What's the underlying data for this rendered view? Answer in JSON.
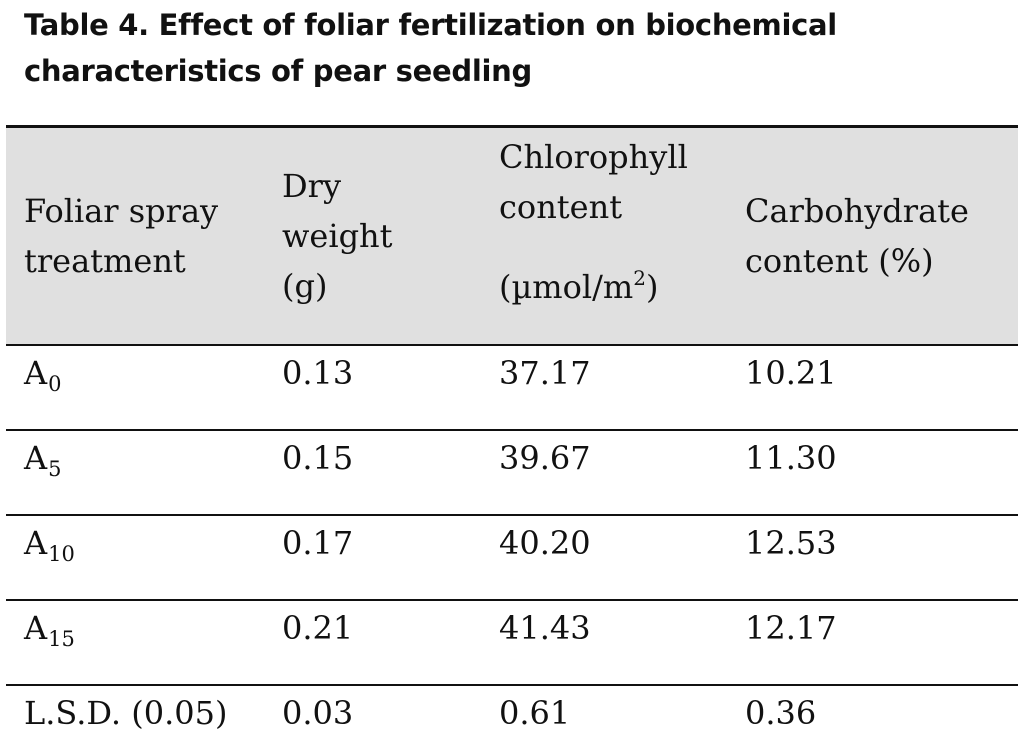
{
  "caption": {
    "line1": "Table 4. Effect of foliar fertilization on biochemical",
    "line2": "characteristics of pear seedling"
  },
  "table": {
    "headers": {
      "treatment": [
        "Foliar spray",
        "treatment"
      ],
      "dry_weight": [
        "Dry",
        "weight",
        "(g)"
      ],
      "chlorophyll": {
        "lines": [
          "Chlorophyll",
          "content"
        ],
        "unit_prefix": "(µmol/m",
        "unit_sup": "2",
        "unit_suffix": ")"
      },
      "carbohydrate": [
        "Carbohydrate",
        "content (%)"
      ]
    },
    "rows": [
      {
        "treatment": "A",
        "treatment_sub": "0",
        "dry_weight": "0.13",
        "chlorophyll": "37.17",
        "carbohydrate": "10.21"
      },
      {
        "treatment": "A",
        "treatment_sub": "5",
        "dry_weight": "0.15",
        "chlorophyll": "39.67",
        "carbohydrate": "11.30"
      },
      {
        "treatment": "A",
        "treatment_sub": "10",
        "dry_weight": "0.17",
        "chlorophyll": "40.20",
        "carbohydrate": "12.53"
      },
      {
        "treatment": "A",
        "treatment_sub": "15",
        "dry_weight": "0.21",
        "chlorophyll": "41.43",
        "carbohydrate": "12.17"
      },
      {
        "treatment": "L.S.D. (0.05)",
        "treatment_sub": "",
        "dry_weight": "0.03",
        "chlorophyll": "0.61",
        "carbohydrate": "0.36"
      }
    ]
  }
}
